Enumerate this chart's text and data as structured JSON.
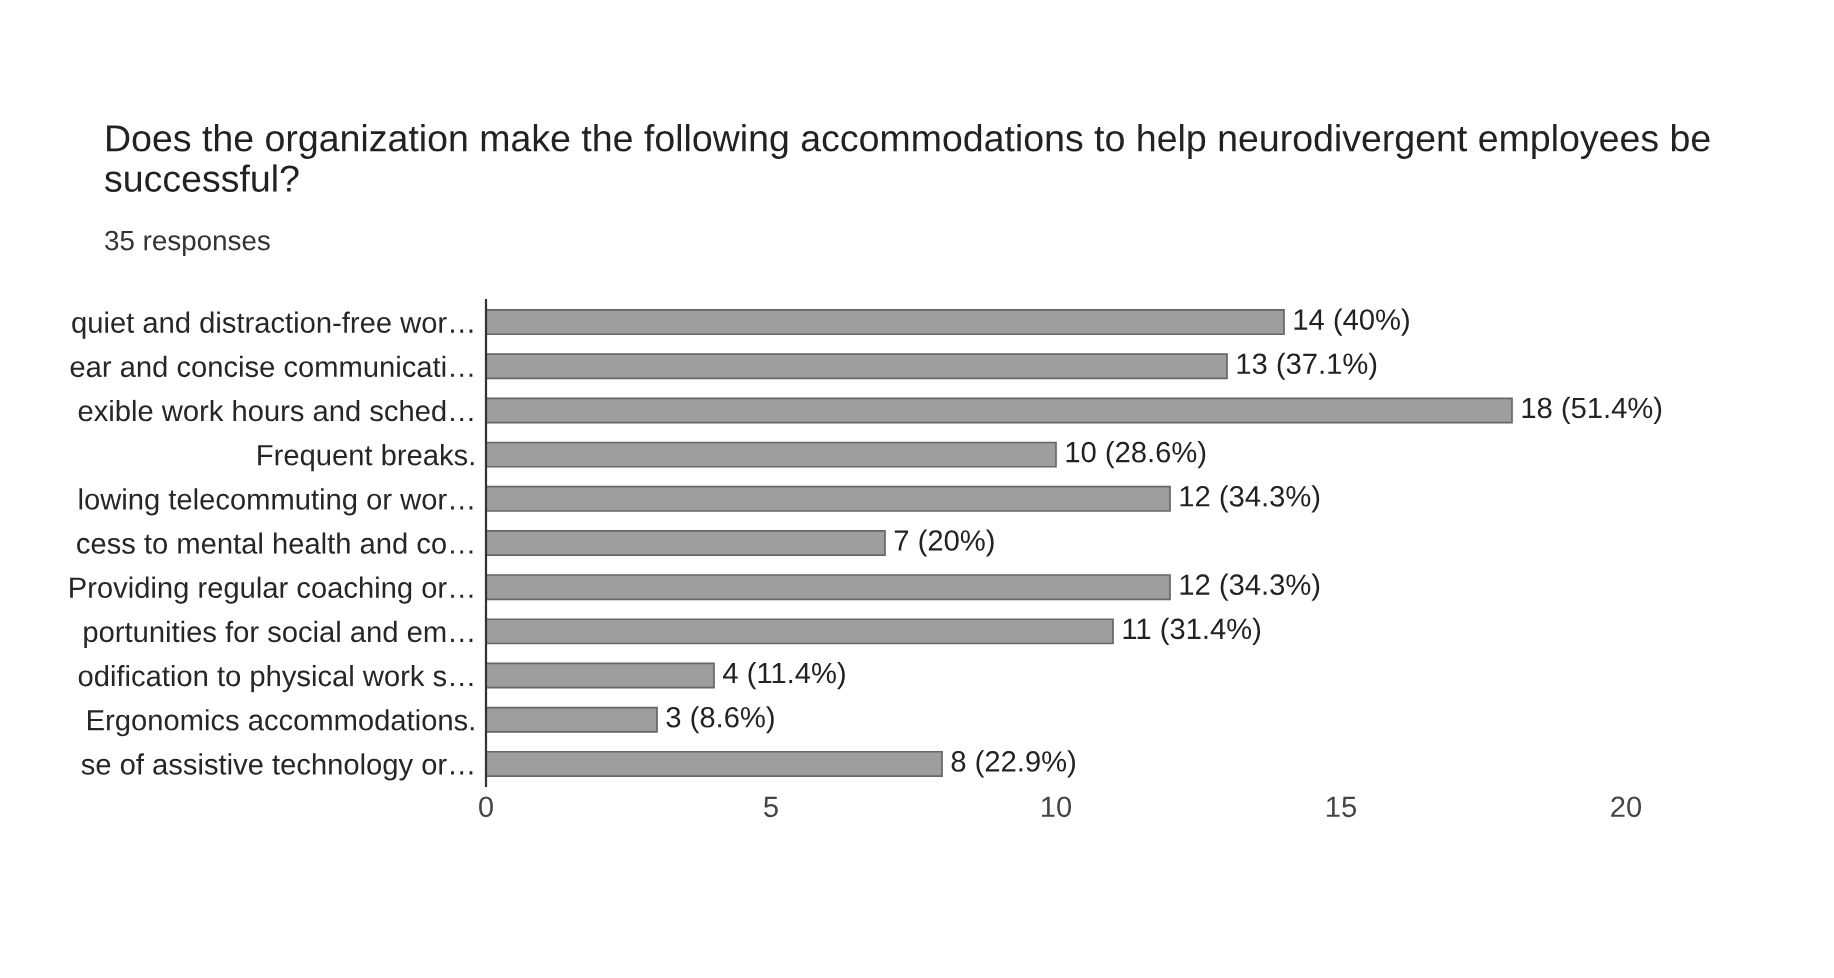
{
  "chart_data": {
    "type": "bar",
    "orientation": "horizontal",
    "title": "Does the organization make the following accommodations to help neurodivergent employees be successful?",
    "subtitle": "35 responses",
    "categories": [
      "quiet and distraction-free wor…",
      "ear and concise communicati…",
      "exible work hours and sched…",
      "Frequent breaks.",
      "lowing telecommuting or wor…",
      "cess to mental health and co…",
      "Providing regular coaching or…",
      "portunities for social and em…",
      "odification to physical work s…",
      "Ergonomics accommodations.",
      "se of assistive technology or…"
    ],
    "values": [
      14,
      13,
      18,
      10,
      12,
      7,
      12,
      11,
      4,
      3,
      8
    ],
    "value_labels": [
      "14 (40%)",
      "13 (37.1%)",
      "18 (51.4%)",
      "10 (28.6%)",
      "12 (34.3%)",
      "7 (20%)",
      "12 (34.3%)",
      "11 (31.4%)",
      "4 (11.4%)",
      "3 (8.6%)",
      "8 (22.9%)"
    ],
    "color": "#9e9e9e",
    "xlim": [
      0,
      20
    ],
    "xticks": [
      0,
      5,
      10,
      15,
      20
    ],
    "grid": false,
    "legend": false
  }
}
